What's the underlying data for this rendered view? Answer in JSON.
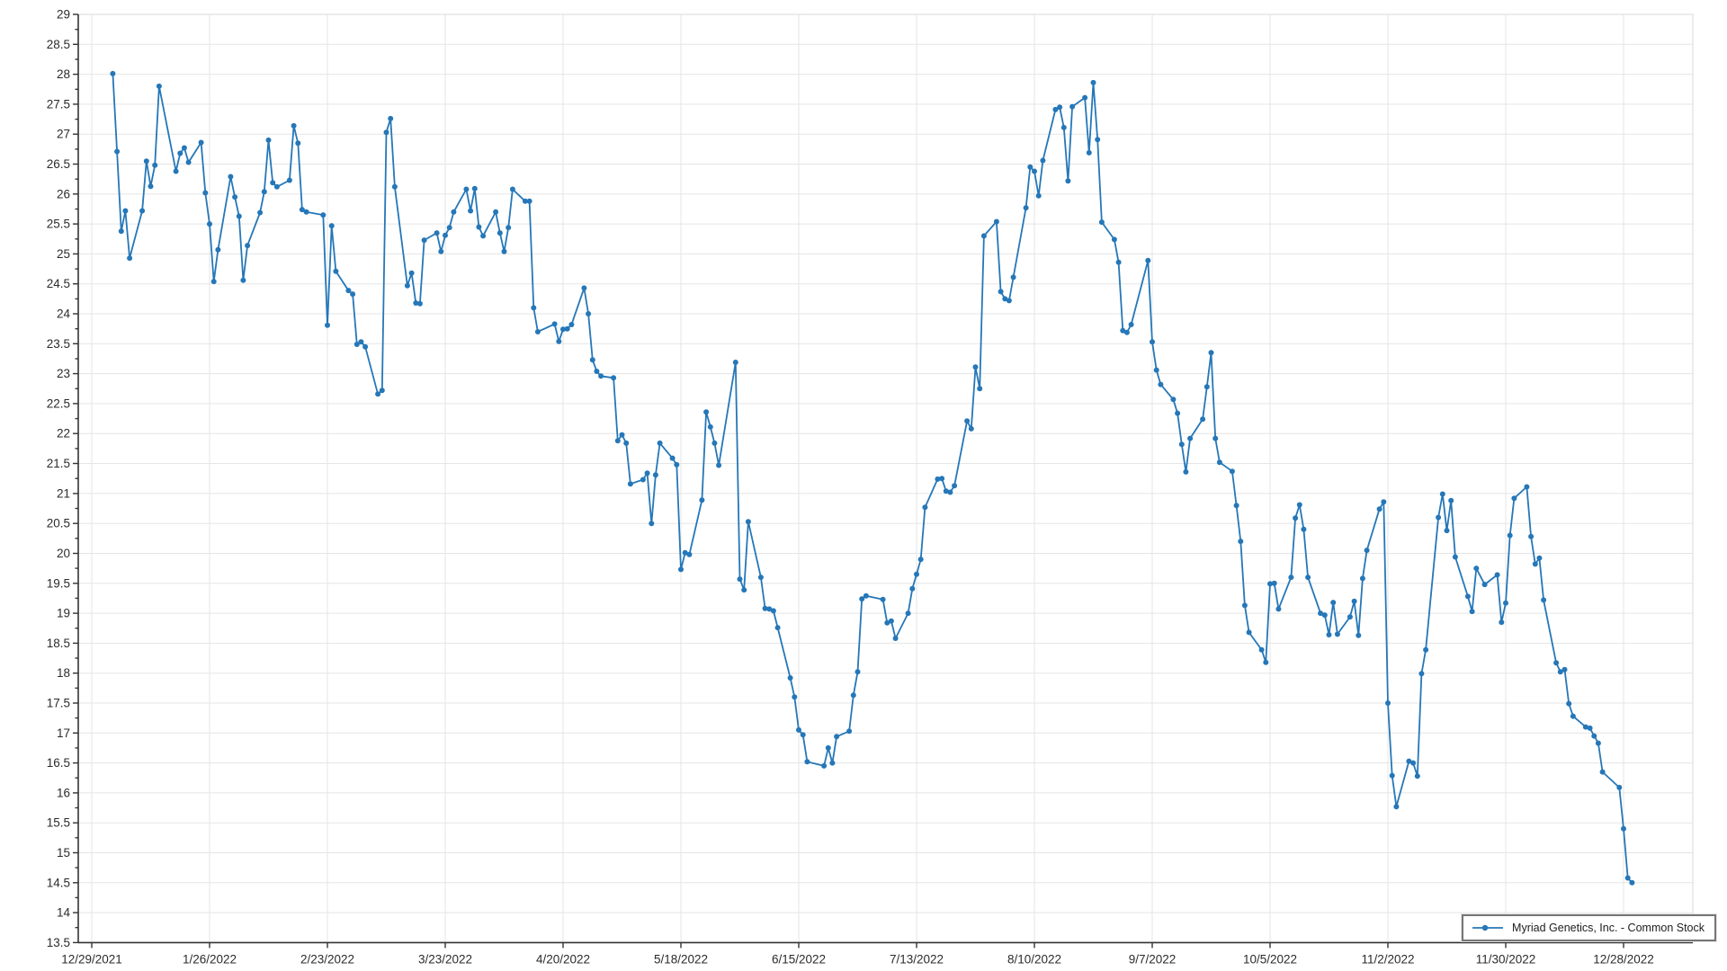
{
  "chart_data": {
    "type": "line",
    "title": "",
    "xlabel": "",
    "ylabel": "",
    "legend_position": "bottom-right",
    "grid": true,
    "ylim": [
      13.5,
      29
    ],
    "y_tick_step": 0.5,
    "y_minor_tick_step": 0.25,
    "colors": {
      "line": "#2577b8",
      "marker": "#2577b8",
      "grid": "#e5e5e5",
      "frame": "#d9d9d9",
      "axis": "#333333",
      "tick_label": "#2b2b2b",
      "background": "#ffffff"
    },
    "y_tick_labels": [
      "29",
      "28.5",
      "28",
      "27.5",
      "27",
      "26.5",
      "26",
      "25.5",
      "25",
      "24.5",
      "24",
      "23.5",
      "23",
      "22.5",
      "22",
      "21.5",
      "21",
      "20.5",
      "20",
      "19.5",
      "19",
      "18.5",
      "18",
      "17.5",
      "17",
      "16.5",
      "16",
      "15.5",
      "15",
      "14.5",
      "14",
      "13.5"
    ],
    "x_tick_labels": [
      "12/29/2021",
      "1/26/2022",
      "2/23/2022",
      "3/23/2022",
      "4/20/2022",
      "5/18/2022",
      "6/15/2022",
      "7/13/2022",
      "8/10/2022",
      "9/7/2022",
      "10/5/2022",
      "11/2/2022",
      "11/30/2022",
      "12/28/2022"
    ],
    "x": [
      "1/3/2022",
      "1/4/2022",
      "1/5/2022",
      "1/6/2022",
      "1/7/2022",
      "1/10/2022",
      "1/11/2022",
      "1/12/2022",
      "1/13/2022",
      "1/14/2022",
      "1/18/2022",
      "1/19/2022",
      "1/20/2022",
      "1/21/2022",
      "1/24/2022",
      "1/25/2022",
      "1/26/2022",
      "1/27/2022",
      "1/28/2022",
      "1/31/2022",
      "2/1/2022",
      "2/2/2022",
      "2/3/2022",
      "2/4/2022",
      "2/7/2022",
      "2/8/2022",
      "2/9/2022",
      "2/10/2022",
      "2/11/2022",
      "2/14/2022",
      "2/15/2022",
      "2/16/2022",
      "2/17/2022",
      "2/18/2022",
      "2/22/2022",
      "2/23/2022",
      "2/24/2022",
      "2/25/2022",
      "2/28/2022",
      "3/1/2022",
      "3/2/2022",
      "3/3/2022",
      "3/4/2022",
      "3/7/2022",
      "3/8/2022",
      "3/9/2022",
      "3/10/2022",
      "3/11/2022",
      "3/14/2022",
      "3/15/2022",
      "3/16/2022",
      "3/17/2022",
      "3/18/2022",
      "3/21/2022",
      "3/22/2022",
      "3/23/2022",
      "3/24/2022",
      "3/25/2022",
      "3/28/2022",
      "3/29/2022",
      "3/30/2022",
      "3/31/2022",
      "4/1/2022",
      "4/4/2022",
      "4/5/2022",
      "4/6/2022",
      "4/7/2022",
      "4/8/2022",
      "4/11/2022",
      "4/12/2022",
      "4/13/2022",
      "4/14/2022",
      "4/18/2022",
      "4/19/2022",
      "4/20/2022",
      "4/21/2022",
      "4/22/2022",
      "4/25/2022",
      "4/26/2022",
      "4/27/2022",
      "4/28/2022",
      "4/29/2022",
      "5/2/2022",
      "5/3/2022",
      "5/4/2022",
      "5/5/2022",
      "5/6/2022",
      "5/9/2022",
      "5/10/2022",
      "5/11/2022",
      "5/12/2022",
      "5/13/2022",
      "5/16/2022",
      "5/17/2022",
      "5/18/2022",
      "5/19/2022",
      "5/20/2022",
      "5/23/2022",
      "5/24/2022",
      "5/25/2022",
      "5/26/2022",
      "5/27/2022",
      "5/31/2022",
      "6/1/2022",
      "6/2/2022",
      "6/3/2022",
      "6/6/2022",
      "6/7/2022",
      "6/8/2022",
      "6/9/2022",
      "6/10/2022",
      "6/13/2022",
      "6/14/2022",
      "6/15/2022",
      "6/16/2022",
      "6/17/2022",
      "6/21/2022",
      "6/22/2022",
      "6/23/2022",
      "6/24/2022",
      "6/27/2022",
      "6/28/2022",
      "6/29/2022",
      "6/30/2022",
      "7/1/2022",
      "7/5/2022",
      "7/6/2022",
      "7/7/2022",
      "7/8/2022",
      "7/11/2022",
      "7/12/2022",
      "7/13/2022",
      "7/14/2022",
      "7/15/2022",
      "7/18/2022",
      "7/19/2022",
      "7/20/2022",
      "7/21/2022",
      "7/22/2022",
      "7/25/2022",
      "7/26/2022",
      "7/27/2022",
      "7/28/2022",
      "7/29/2022",
      "8/1/2022",
      "8/2/2022",
      "8/3/2022",
      "8/4/2022",
      "8/5/2022",
      "8/8/2022",
      "8/9/2022",
      "8/10/2022",
      "8/11/2022",
      "8/12/2022",
      "8/15/2022",
      "8/16/2022",
      "8/17/2022",
      "8/18/2022",
      "8/19/2022",
      "8/22/2022",
      "8/23/2022",
      "8/24/2022",
      "8/25/2022",
      "8/26/2022",
      "8/29/2022",
      "8/30/2022",
      "8/31/2022",
      "9/1/2022",
      "9/2/2022",
      "9/6/2022",
      "9/7/2022",
      "9/8/2022",
      "9/9/2022",
      "9/12/2022",
      "9/13/2022",
      "9/14/2022",
      "9/15/2022",
      "9/16/2022",
      "9/19/2022",
      "9/20/2022",
      "9/21/2022",
      "9/22/2022",
      "9/23/2022",
      "9/26/2022",
      "9/27/2022",
      "9/28/2022",
      "9/29/2022",
      "9/30/2022",
      "10/3/2022",
      "10/4/2022",
      "10/5/2022",
      "10/6/2022",
      "10/7/2022",
      "10/10/2022",
      "10/11/2022",
      "10/12/2022",
      "10/13/2022",
      "10/14/2022",
      "10/17/2022",
      "10/18/2022",
      "10/19/2022",
      "10/20/2022",
      "10/21/2022",
      "10/24/2022",
      "10/25/2022",
      "10/26/2022",
      "10/27/2022",
      "10/28/2022",
      "10/31/2022",
      "11/1/2022",
      "11/2/2022",
      "11/3/2022",
      "11/4/2022",
      "11/7/2022",
      "11/8/2022",
      "11/9/2022",
      "11/10/2022",
      "11/11/2022",
      "11/14/2022",
      "11/15/2022",
      "11/16/2022",
      "11/17/2022",
      "11/18/2022",
      "11/21/2022",
      "11/22/2022",
      "11/23/2022",
      "11/25/2022",
      "11/28/2022",
      "11/29/2022",
      "11/30/2022",
      "12/1/2022",
      "12/2/2022",
      "12/5/2022",
      "12/6/2022",
      "12/7/2022",
      "12/8/2022",
      "12/9/2022",
      "12/12/2022",
      "12/13/2022",
      "12/14/2022",
      "12/15/2022",
      "12/16/2022",
      "12/19/2022",
      "12/20/2022",
      "12/21/2022",
      "12/22/2022",
      "12/23/2022",
      "12/27/2022",
      "12/28/2022",
      "12/29/2022",
      "12/30/2022"
    ],
    "series": [
      {
        "name": "Myriad Genetics, Inc. - Common Stock",
        "values": [
          28.01,
          26.71,
          25.38,
          25.72,
          24.93,
          25.72,
          26.55,
          26.13,
          26.48,
          27.8,
          26.38,
          26.68,
          26.77,
          26.53,
          26.86,
          26.02,
          25.5,
          24.54,
          25.07,
          26.29,
          25.95,
          25.63,
          24.56,
          25.14,
          25.69,
          26.04,
          26.9,
          26.19,
          26.12,
          26.23,
          27.14,
          26.85,
          25.74,
          25.7,
          25.65,
          23.81,
          25.47,
          24.71,
          24.39,
          24.33,
          23.49,
          23.53,
          23.45,
          22.66,
          22.72,
          27.03,
          27.26,
          26.12,
          24.47,
          24.68,
          24.18,
          24.17,
          25.23,
          25.35,
          25.04,
          25.31,
          25.44,
          25.7,
          26.08,
          25.72,
          26.09,
          25.45,
          25.3,
          25.7,
          25.35,
          25.04,
          25.44,
          26.08,
          25.88,
          25.88,
          24.1,
          23.7,
          23.83,
          23.54,
          23.74,
          23.75,
          23.82,
          24.43,
          24.0,
          23.23,
          23.04,
          22.96,
          22.93,
          21.88,
          21.98,
          21.84,
          21.16,
          21.23,
          21.34,
          20.5,
          21.31,
          21.84,
          21.59,
          21.48,
          19.73,
          20.01,
          19.98,
          20.89,
          22.36,
          22.11,
          21.84,
          21.47,
          23.19,
          19.57,
          19.39,
          20.53,
          19.6,
          19.08,
          19.07,
          19.04,
          18.76,
          17.92,
          17.6,
          17.05,
          16.97,
          16.52,
          16.45,
          16.75,
          16.5,
          16.94,
          17.03,
          17.63,
          18.02,
          19.24,
          19.29,
          19.23,
          18.84,
          18.87,
          18.58,
          19.0,
          19.41,
          19.65,
          19.9,
          20.77,
          21.24,
          21.25,
          21.04,
          21.02,
          21.13,
          22.21,
          22.08,
          23.11,
          22.75,
          25.3,
          25.54,
          24.37,
          24.25,
          24.22,
          24.61,
          25.77,
          26.45,
          26.38,
          25.97,
          26.56,
          27.41,
          27.45,
          27.11,
          26.22,
          27.46,
          27.61,
          26.69,
          27.86,
          26.91,
          25.53,
          25.24,
          24.86,
          23.72,
          23.69,
          23.82,
          24.89,
          23.53,
          23.06,
          22.82,
          22.57,
          22.34,
          21.82,
          21.36,
          21.92,
          22.24,
          22.78,
          23.35,
          21.92,
          21.52,
          21.37,
          20.8,
          20.2,
          19.13,
          18.68,
          18.39,
          18.18,
          19.49,
          19.5,
          19.07,
          19.6,
          20.59,
          20.81,
          20.4,
          19.6,
          19.0,
          18.97,
          18.64,
          19.18,
          18.65,
          18.94,
          19.2,
          18.63,
          19.58,
          20.05,
          20.74,
          20.86,
          17.5,
          16.29,
          15.77,
          16.53,
          16.5,
          16.28,
          17.99,
          18.39,
          20.6,
          20.99,
          20.38,
          20.88,
          19.94,
          19.28,
          19.03,
          19.75,
          19.48,
          19.64,
          18.85,
          19.17,
          20.3,
          20.92,
          21.11,
          20.28,
          19.82,
          19.92,
          19.22,
          18.17,
          18.02,
          18.06,
          17.49,
          17.28,
          17.1,
          17.08,
          16.95,
          16.83,
          16.35,
          16.09,
          15.4,
          14.58,
          14.5
        ]
      }
    ]
  }
}
